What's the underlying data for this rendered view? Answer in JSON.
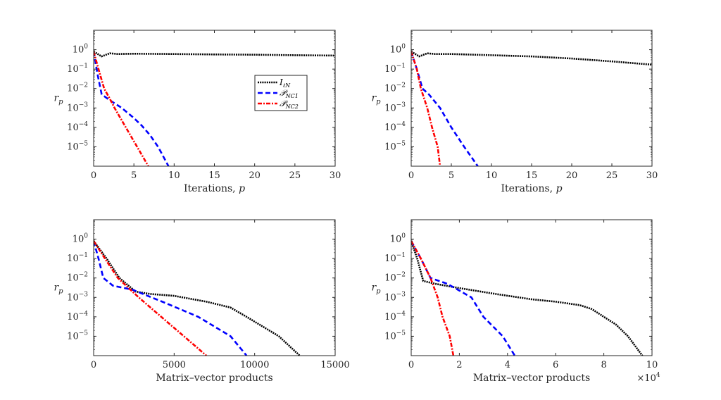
{
  "colors": {
    "ILN": "#000000",
    "PNC1": "#0000ff",
    "PNC2": "#ff0000",
    "axis": "#262626"
  },
  "legend": {
    "entries": [
      {
        "key": "ILN",
        "label": "I_ℓN",
        "style": "dotted"
      },
      {
        "key": "PNC1",
        "label": "𝒫_NC1",
        "style": "dashed"
      },
      {
        "key": "PNC2",
        "label": "𝒫_NC2",
        "style": "dashdot"
      }
    ],
    "placement": "top-left panel, center-right"
  },
  "chart_data": [
    {
      "id": "top-left",
      "type": "line",
      "title": "",
      "xlabel": "Iterations, p",
      "ylabel": "r_p",
      "xscale": "linear",
      "yscale": "log",
      "xlim": [
        0,
        30
      ],
      "ylim": [
        1e-06,
        10
      ],
      "xticks": [
        0,
        5,
        10,
        15,
        20,
        25,
        30
      ],
      "xtick_labels": [
        "0",
        "5",
        "10",
        "15",
        "20",
        "25",
        "30"
      ],
      "x_multiplier": "",
      "yticks": [
        1,
        0.1,
        0.01,
        0.001,
        0.0001,
        1e-05
      ],
      "ytick_labels": [
        [
          "10",
          "0"
        ],
        [
          "10",
          "−1"
        ],
        [
          "10",
          "−2"
        ],
        [
          "10",
          "−3"
        ],
        [
          "10",
          "−4"
        ],
        [
          "10",
          "−5"
        ]
      ],
      "has_legend": true,
      "series": [
        {
          "key": "ILN",
          "name": "I_ℓN",
          "x": [
            0,
            1,
            2,
            3,
            5,
            10,
            15,
            20,
            25,
            30
          ],
          "y": [
            0.8,
            0.45,
            0.65,
            0.6,
            0.62,
            0.6,
            0.57,
            0.55,
            0.52,
            0.5
          ]
        },
        {
          "key": "PNC1",
          "name": "𝒫_NC1",
          "x": [
            0,
            0.5,
            1,
            2,
            3.5,
            5,
            6,
            7,
            8,
            9.3
          ],
          "y": [
            0.8,
            0.05,
            0.005,
            0.0025,
            0.001,
            0.0003,
            0.00012,
            4e-05,
            1e-05,
            1e-06
          ]
        },
        {
          "key": "PNC2",
          "name": "𝒫_NC2",
          "x": [
            0,
            0.6,
            1.3,
            2,
            2.6,
            4,
            5.4,
            6.8
          ],
          "y": [
            0.8,
            0.1,
            0.01,
            0.003,
            0.001,
            0.0001,
            1e-05,
            1e-06
          ]
        }
      ]
    },
    {
      "id": "top-right",
      "type": "line",
      "title": "",
      "xlabel": "Iterations, p",
      "ylabel": "r_p",
      "xscale": "linear",
      "yscale": "log",
      "xlim": [
        0,
        30
      ],
      "ylim": [
        1e-06,
        10
      ],
      "xticks": [
        0,
        5,
        10,
        15,
        20,
        25,
        30
      ],
      "xtick_labels": [
        "0",
        "5",
        "10",
        "15",
        "20",
        "25",
        "30"
      ],
      "x_multiplier": "",
      "yticks": [
        1,
        0.1,
        0.01,
        0.001,
        0.0001,
        1e-05
      ],
      "ytick_labels": [
        [
          "10",
          "0"
        ],
        [
          "10",
          "−1"
        ],
        [
          "10",
          "−2"
        ],
        [
          "10",
          "−3"
        ],
        [
          "10",
          "−4"
        ],
        [
          "10",
          "−5"
        ]
      ],
      "has_legend": false,
      "series": [
        {
          "key": "ILN",
          "name": "I_ℓN",
          "x": [
            0,
            1,
            2,
            3,
            5,
            10,
            15,
            20,
            25,
            30
          ],
          "y": [
            0.8,
            0.45,
            0.65,
            0.6,
            0.6,
            0.52,
            0.45,
            0.35,
            0.25,
            0.17
          ]
        },
        {
          "key": "PNC1",
          "name": "𝒫_NC1",
          "x": [
            0,
            0.7,
            1.4,
            2.2,
            3.6,
            5,
            6.6,
            8.3
          ],
          "y": [
            0.8,
            0.1,
            0.01,
            0.005,
            0.001,
            0.0001,
            1e-05,
            1e-06
          ]
        },
        {
          "key": "PNC2",
          "name": "𝒫_NC2",
          "x": [
            0,
            0.7,
            1.2,
            2,
            2.6,
            3.3,
            3.6
          ],
          "y": [
            0.8,
            0.1,
            0.01,
            0.001,
            0.0001,
            1e-05,
            1e-06
          ]
        }
      ]
    },
    {
      "id": "bottom-left",
      "type": "line",
      "title": "",
      "xlabel": "Matrix–vector products",
      "ylabel": "r_p",
      "xscale": "linear",
      "yscale": "log",
      "xlim": [
        0,
        15000
      ],
      "ylim": [
        1e-06,
        10
      ],
      "xticks": [
        0,
        5000,
        10000,
        15000
      ],
      "xtick_labels": [
        "0",
        "5000",
        "10000",
        "15000"
      ],
      "x_multiplier": "",
      "yticks": [
        1,
        0.1,
        0.01,
        0.001,
        0.0001,
        1e-05
      ],
      "ytick_labels": [
        [
          "10",
          "0"
        ],
        [
          "10",
          "−1"
        ],
        [
          "10",
          "−2"
        ],
        [
          "10",
          "−3"
        ],
        [
          "10",
          "−4"
        ],
        [
          "10",
          "−5"
        ]
      ],
      "has_legend": false,
      "series": [
        {
          "key": "ILN",
          "name": "I_ℓN",
          "x": [
            0,
            800,
            1600,
            2600,
            3500,
            5000,
            7000,
            8500,
            9500,
            11500,
            12800
          ],
          "y": [
            0.8,
            0.1,
            0.01,
            0.002,
            0.0015,
            0.0012,
            0.0006,
            0.0003,
            0.0001,
            1e-05,
            1e-06
          ]
        },
        {
          "key": "PNC1",
          "name": "𝒫_NC1",
          "x": [
            0,
            300,
            600,
            1200,
            2400,
            4500,
            6500,
            8500,
            9500
          ],
          "y": [
            0.8,
            0.1,
            0.01,
            0.004,
            0.0025,
            0.0005,
            0.0001,
            1e-05,
            1e-06
          ]
        },
        {
          "key": "PNC2",
          "name": "𝒫_NC2",
          "x": [
            0,
            700,
            1500,
            2800,
            4200,
            5600,
            7000
          ],
          "y": [
            0.8,
            0.1,
            0.01,
            0.001,
            0.0001,
            1e-05,
            1e-06
          ]
        }
      ]
    },
    {
      "id": "bottom-right",
      "type": "line",
      "title": "",
      "xlabel": "Matrix–vector products",
      "ylabel": "r_p",
      "xscale": "linear",
      "yscale": "log",
      "xlim": [
        0,
        100000
      ],
      "ylim": [
        1e-06,
        10
      ],
      "xticks": [
        0,
        20000,
        40000,
        60000,
        80000,
        100000
      ],
      "xtick_labels": [
        "0",
        "2",
        "4",
        "6",
        "8",
        "10"
      ],
      "x_multiplier": [
        "×10",
        "4"
      ],
      "yticks": [
        1,
        0.1,
        0.01,
        0.001,
        0.0001,
        1e-05
      ],
      "ytick_labels": [
        [
          "10",
          "0"
        ],
        [
          "10",
          "−1"
        ],
        [
          "10",
          "−2"
        ],
        [
          "10",
          "−3"
        ],
        [
          "10",
          "−4"
        ],
        [
          "10",
          "−5"
        ]
      ],
      "has_legend": false,
      "series": [
        {
          "key": "ILN",
          "name": "I_ℓN",
          "x": [
            0,
            2500,
            5000,
            10000,
            20000,
            35000,
            50000,
            60000,
            70000,
            75000,
            80000,
            85000,
            90000,
            96000
          ],
          "y": [
            0.8,
            0.1,
            0.007,
            0.005,
            0.003,
            0.0015,
            0.0008,
            0.0006,
            0.0004,
            0.00025,
            0.0001,
            4e-05,
            1e-05,
            1e-06
          ]
        },
        {
          "key": "PNC1",
          "name": "𝒫_NC1",
          "x": [
            0,
            4000,
            8000,
            15000,
            25000,
            30000,
            38000,
            43000
          ],
          "y": [
            0.8,
            0.1,
            0.01,
            0.005,
            0.001,
            0.0001,
            1e-05,
            1e-06
          ]
        },
        {
          "key": "PNC2",
          "name": "𝒫_NC2",
          "x": [
            0,
            4000,
            8000,
            11000,
            13000,
            16000,
            17500
          ],
          "y": [
            0.8,
            0.1,
            0.01,
            0.001,
            0.0001,
            1e-05,
            1e-06
          ]
        }
      ]
    }
  ]
}
